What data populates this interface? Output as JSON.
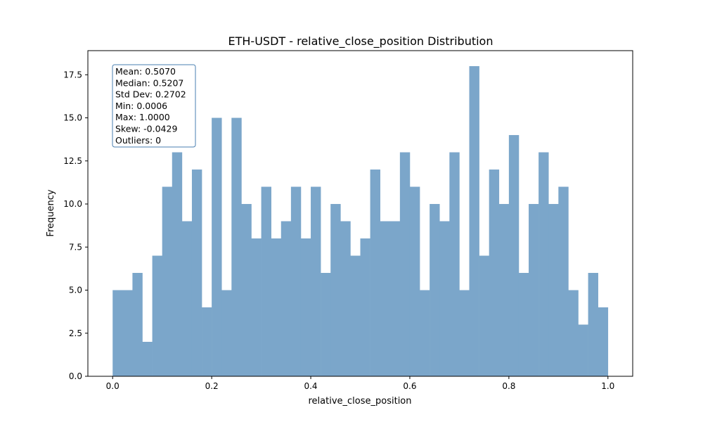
{
  "chart_data": {
    "type": "histogram",
    "title": "ETH-USDT - relative_close_position Distribution",
    "xlabel": "relative_close_position",
    "ylabel": "Frequency",
    "xlim": [
      -0.05,
      1.05
    ],
    "ylim": [
      0,
      18.9
    ],
    "xticks": [
      0.0,
      0.2,
      0.4,
      0.6,
      0.8,
      1.0
    ],
    "xtick_labels": [
      "0.0",
      "0.2",
      "0.4",
      "0.6",
      "0.8",
      "1.0"
    ],
    "yticks": [
      0.0,
      2.5,
      5.0,
      7.5,
      10.0,
      12.5,
      15.0,
      17.5
    ],
    "ytick_labels": [
      "0.0",
      "2.5",
      "5.0",
      "7.5",
      "10.0",
      "12.5",
      "15.0",
      "17.5"
    ],
    "bin_range": [
      0.0,
      1.0
    ],
    "bins": 50,
    "counts": [
      5,
      5,
      6,
      2,
      7,
      11,
      13,
      9,
      12,
      4,
      15,
      5,
      15,
      10,
      8,
      11,
      8,
      9,
      11,
      8,
      11,
      6,
      10,
      9,
      7,
      8,
      12,
      9,
      9,
      13,
      11,
      5,
      10,
      9,
      13,
      5,
      18,
      7,
      12,
      10,
      14,
      6,
      10,
      13,
      10,
      11,
      5,
      3,
      6,
      4
    ],
    "bar_color": "#7ba6ca",
    "grid": false,
    "stats_box": {
      "lines": [
        "Mean: 0.5070",
        "Median: 0.5207",
        "Std Dev: 0.2702",
        "Min: 0.0006",
        "Max: 1.0000",
        "Skew: -0.0429",
        "Outliers: 0"
      ],
      "border_color": "#4a7fb0",
      "placement": "top-left"
    }
  }
}
